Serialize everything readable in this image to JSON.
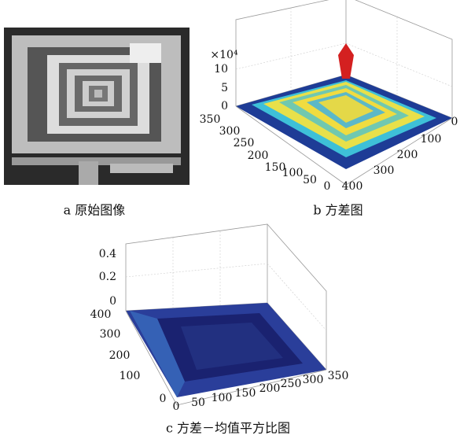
{
  "panels": [
    {
      "caption": "a 原始图像"
    },
    {
      "caption": "b 方差图",
      "z_multiplier": "×10⁴",
      "z_ticks": [
        10,
        5,
        0
      ],
      "left_ticks": [
        350,
        300,
        250,
        200,
        150,
        100,
        50,
        0
      ],
      "right_ticks": [
        0,
        100,
        200,
        300,
        400
      ]
    },
    {
      "caption": "c 方差－均值平方比图",
      "z_ticks": [
        0.4,
        0.2,
        0
      ],
      "left_ticks": [
        400,
        300,
        200,
        100,
        0
      ],
      "bottom_ticks": [
        0,
        50,
        100,
        150,
        200,
        250,
        300,
        350
      ]
    }
  ]
}
